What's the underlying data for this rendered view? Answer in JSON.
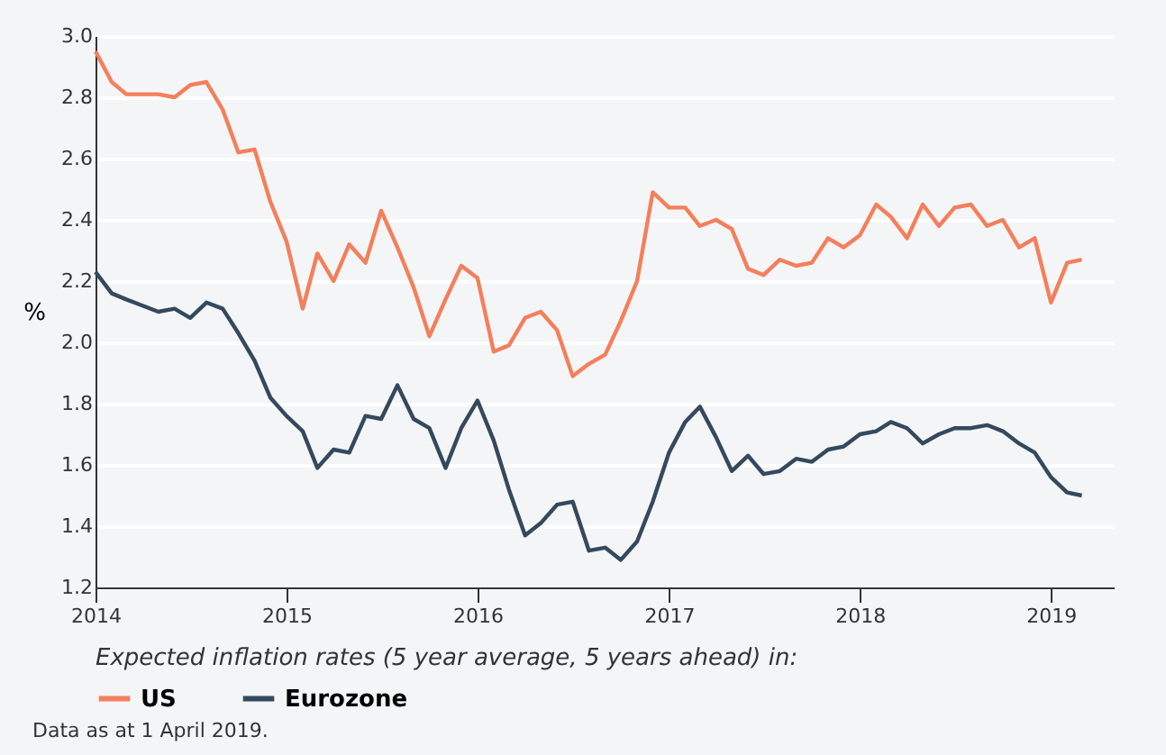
{
  "chart_data": {
    "type": "line",
    "ylabel": "%",
    "legend_title": "Expected inflation rates (5 year average, 5 years ahead) in:",
    "annotations": [
      "Data as at 1 April 2019."
    ],
    "x": [
      "2014-01",
      "2014-02",
      "2014-03",
      "2014-04",
      "2014-05",
      "2014-06",
      "2014-07",
      "2014-08",
      "2014-09",
      "2014-10",
      "2014-11",
      "2014-12",
      "2015-01",
      "2015-02",
      "2015-03",
      "2015-04",
      "2015-05",
      "2015-06",
      "2015-07",
      "2015-08",
      "2015-09",
      "2015-10",
      "2015-11",
      "2015-12",
      "2016-01",
      "2016-02",
      "2016-03",
      "2016-04",
      "2016-05",
      "2016-06",
      "2016-07",
      "2016-08",
      "2016-09",
      "2016-10",
      "2016-11",
      "2016-12",
      "2017-01",
      "2017-02",
      "2017-03",
      "2017-04",
      "2017-05",
      "2017-06",
      "2017-07",
      "2017-08",
      "2017-09",
      "2017-10",
      "2017-11",
      "2017-12",
      "2018-01",
      "2018-02",
      "2018-03",
      "2018-04",
      "2018-05",
      "2018-06",
      "2018-07",
      "2018-08",
      "2018-09",
      "2018-10",
      "2018-11",
      "2018-12",
      "2019-01",
      "2019-02",
      "2019-03"
    ],
    "series": [
      {
        "name": "US",
        "color": "#f47f5c",
        "values": [
          2.95,
          2.85,
          2.81,
          2.81,
          2.81,
          2.8,
          2.84,
          2.85,
          2.76,
          2.62,
          2.63,
          2.46,
          2.33,
          2.11,
          2.29,
          2.2,
          2.32,
          2.26,
          2.43,
          2.31,
          2.18,
          2.02,
          2.14,
          2.25,
          2.21,
          1.97,
          1.99,
          2.08,
          2.1,
          2.04,
          1.89,
          1.93,
          1.96,
          2.07,
          2.2,
          2.49,
          2.44,
          2.44,
          2.38,
          2.4,
          2.37,
          2.24,
          2.22,
          2.27,
          2.25,
          2.26,
          2.34,
          2.31,
          2.35,
          2.45,
          2.41,
          2.34,
          2.45,
          2.38,
          2.44,
          2.45,
          2.38,
          2.4,
          2.31,
          2.34,
          2.13,
          2.26,
          2.27
        ]
      },
      {
        "name": "Eurozone",
        "color": "#34495e",
        "values": [
          2.23,
          2.16,
          2.14,
          2.12,
          2.1,
          2.11,
          2.08,
          2.13,
          2.11,
          2.03,
          1.94,
          1.82,
          1.76,
          1.71,
          1.59,
          1.65,
          1.64,
          1.76,
          1.75,
          1.86,
          1.75,
          1.72,
          1.59,
          1.72,
          1.81,
          1.68,
          1.52,
          1.37,
          1.41,
          1.47,
          1.48,
          1.32,
          1.33,
          1.29,
          1.35,
          1.48,
          1.64,
          1.74,
          1.79,
          1.69,
          1.58,
          1.63,
          1.57,
          1.58,
          1.62,
          1.61,
          1.65,
          1.66,
          1.7,
          1.71,
          1.74,
          1.72,
          1.67,
          1.7,
          1.72,
          1.72,
          1.73,
          1.71,
          1.67,
          1.64,
          1.56,
          1.51,
          1.5
        ]
      }
    ],
    "xlim": [
      "2014-01",
      "2019-05"
    ],
    "xticks": [
      "2014",
      "2015",
      "2016",
      "2017",
      "2018",
      "2019"
    ],
    "ylim": [
      1.2,
      3.0
    ],
    "yticks": [
      1.2,
      1.4,
      1.6,
      1.8,
      {
        "value": 2,
        "label": "2.0"
      },
      2.2,
      2.4,
      2.6,
      2.8,
      {
        "value": 3,
        "label": "3.0"
      }
    ],
    "grid": "y",
    "legend": "bottom",
    "marker": "none",
    "line_style": "solid"
  }
}
